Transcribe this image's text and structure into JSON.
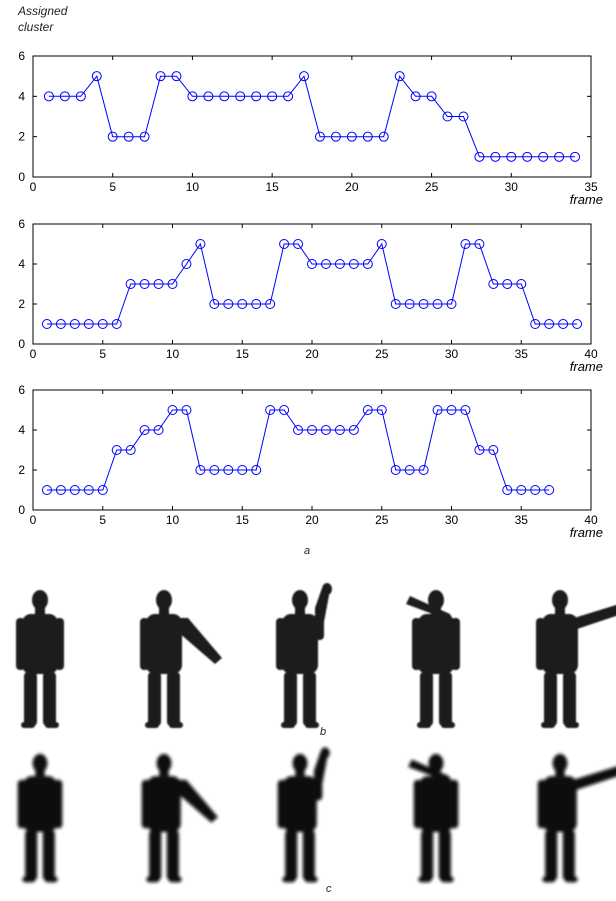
{
  "figure": {
    "y_label_line1": "Assigned",
    "y_label_line2": "cluster",
    "caption_a": "a",
    "caption_b": "b",
    "caption_c": "c"
  },
  "chart_data": [
    {
      "type": "line",
      "xlabel": "frame",
      "ylabel": "Assigned cluster",
      "xlim": [
        0,
        35
      ],
      "ylim": [
        0,
        6
      ],
      "xticks": [
        0,
        5,
        10,
        15,
        20,
        25,
        30,
        35
      ],
      "yticks": [
        0,
        2,
        4,
        6
      ],
      "marker": "circle",
      "color": "#0000ff",
      "x": [
        1,
        2,
        3,
        4,
        5,
        6,
        7,
        8,
        9,
        10,
        11,
        12,
        13,
        14,
        15,
        16,
        17,
        18,
        19,
        20,
        21,
        22,
        23,
        24,
        25,
        26,
        27,
        28,
        29,
        30,
        31,
        32,
        33,
        34
      ],
      "y": [
        4,
        4,
        4,
        5,
        2,
        2,
        2,
        5,
        5,
        4,
        4,
        4,
        4,
        4,
        4,
        4,
        5,
        2,
        2,
        2,
        2,
        2,
        5,
        4,
        4,
        3,
        3,
        1,
        1,
        1,
        1,
        1,
        1,
        1
      ]
    },
    {
      "type": "line",
      "xlabel": "frame",
      "xlim": [
        0,
        40
      ],
      "ylim": [
        0,
        6
      ],
      "xticks": [
        0,
        5,
        10,
        15,
        20,
        25,
        30,
        35,
        40
      ],
      "yticks": [
        0,
        2,
        4,
        6
      ],
      "marker": "circle",
      "color": "#0000ff",
      "x": [
        1,
        2,
        3,
        4,
        5,
        6,
        7,
        8,
        9,
        10,
        11,
        12,
        13,
        14,
        15,
        16,
        17,
        18,
        19,
        20,
        21,
        22,
        23,
        24,
        25,
        26,
        27,
        28,
        29,
        30,
        31,
        32,
        33,
        34,
        35,
        36,
        37,
        38,
        39
      ],
      "y": [
        1,
        1,
        1,
        1,
        1,
        1,
        3,
        3,
        3,
        3,
        4,
        5,
        2,
        2,
        2,
        2,
        2,
        5,
        5,
        4,
        4,
        4,
        4,
        4,
        5,
        2,
        2,
        2,
        2,
        2,
        5,
        5,
        3,
        3,
        3,
        1,
        1,
        1,
        1
      ]
    },
    {
      "type": "line",
      "xlabel": "frame",
      "xlim": [
        0,
        40
      ],
      "ylim": [
        0,
        6
      ],
      "xticks": [
        0,
        5,
        10,
        15,
        20,
        25,
        30,
        35,
        40
      ],
      "yticks": [
        0,
        2,
        4,
        6
      ],
      "marker": "circle",
      "color": "#0000ff",
      "x": [
        1,
        2,
        3,
        4,
        5,
        6,
        7,
        8,
        9,
        10,
        11,
        12,
        13,
        14,
        15,
        16,
        17,
        18,
        19,
        20,
        21,
        22,
        23,
        24,
        25,
        26,
        27,
        28,
        29,
        30,
        31,
        32,
        33,
        34,
        35,
        36,
        37
      ],
      "y": [
        1,
        1,
        1,
        1,
        1,
        3,
        3,
        4,
        4,
        5,
        5,
        2,
        2,
        2,
        2,
        2,
        5,
        5,
        4,
        4,
        4,
        4,
        4,
        5,
        5,
        2,
        2,
        2,
        5,
        5,
        5,
        3,
        3,
        1,
        1,
        1,
        1
      ]
    }
  ]
}
